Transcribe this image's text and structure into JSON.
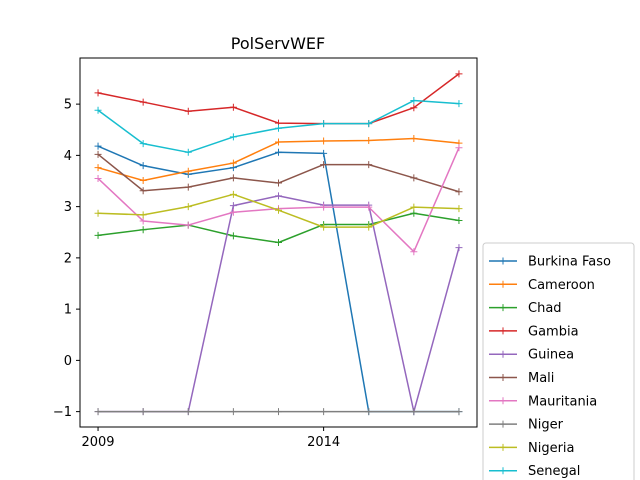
{
  "chart_data": {
    "type": "line",
    "title": "PolServWEF",
    "xlabel": "",
    "ylabel": "",
    "x": [
      2009,
      2010,
      2011,
      2012,
      2013,
      2014,
      2015,
      2016,
      2017
    ],
    "xticks": [
      2009,
      2014
    ],
    "yticks": [
      -1,
      0,
      1,
      2,
      3,
      4,
      5
    ],
    "ylim": [
      -1.3,
      5.9
    ],
    "xlim": [
      2008.6,
      2017.4
    ],
    "grid": false,
    "legend_position": "outside-right-bottom",
    "series": [
      {
        "name": "Burkina Faso",
        "color": "#1f77b4",
        "values": [
          4.18,
          3.8,
          3.63,
          3.76,
          4.06,
          4.04,
          -1.0,
          -1.0,
          -1.0
        ]
      },
      {
        "name": "Cameroon",
        "color": "#ff7f0e",
        "values": [
          3.76,
          3.51,
          3.69,
          3.85,
          4.26,
          4.28,
          4.29,
          4.33,
          4.24
        ]
      },
      {
        "name": "Chad",
        "color": "#2ca02c",
        "values": [
          2.44,
          2.55,
          2.64,
          2.43,
          2.3,
          2.65,
          2.65,
          2.87,
          2.73
        ]
      },
      {
        "name": "Gambia",
        "color": "#d62728",
        "values": [
          5.22,
          5.04,
          4.86,
          4.94,
          4.63,
          4.62,
          4.62,
          4.93,
          5.59
        ]
      },
      {
        "name": "Guinea",
        "color": "#9467bd",
        "values": [
          -1.0,
          -1.0,
          -1.0,
          3.02,
          3.21,
          3.03,
          3.03,
          -1.0,
          2.2
        ]
      },
      {
        "name": "Mali",
        "color": "#8c564b",
        "values": [
          4.02,
          3.31,
          3.38,
          3.56,
          3.46,
          3.82,
          3.82,
          3.56,
          3.29
        ]
      },
      {
        "name": "Mauritania",
        "color": "#e377c2",
        "values": [
          3.55,
          2.72,
          2.64,
          2.89,
          2.96,
          2.99,
          2.99,
          2.12,
          4.15
        ]
      },
      {
        "name": "Niger",
        "color": "#7f7f7f",
        "values": [
          -1.0,
          -1.0,
          -1.0,
          -1.0,
          -1.0,
          -1.0,
          -1.0,
          -1.0,
          -1.0
        ]
      },
      {
        "name": "Nigeria",
        "color": "#bcbd22",
        "values": [
          2.87,
          2.84,
          3.0,
          3.24,
          2.93,
          2.6,
          2.6,
          2.99,
          2.96
        ]
      },
      {
        "name": "Senegal",
        "color": "#17becf",
        "values": [
          4.88,
          4.23,
          4.06,
          4.36,
          4.53,
          4.62,
          4.62,
          5.07,
          5.01
        ]
      }
    ]
  }
}
